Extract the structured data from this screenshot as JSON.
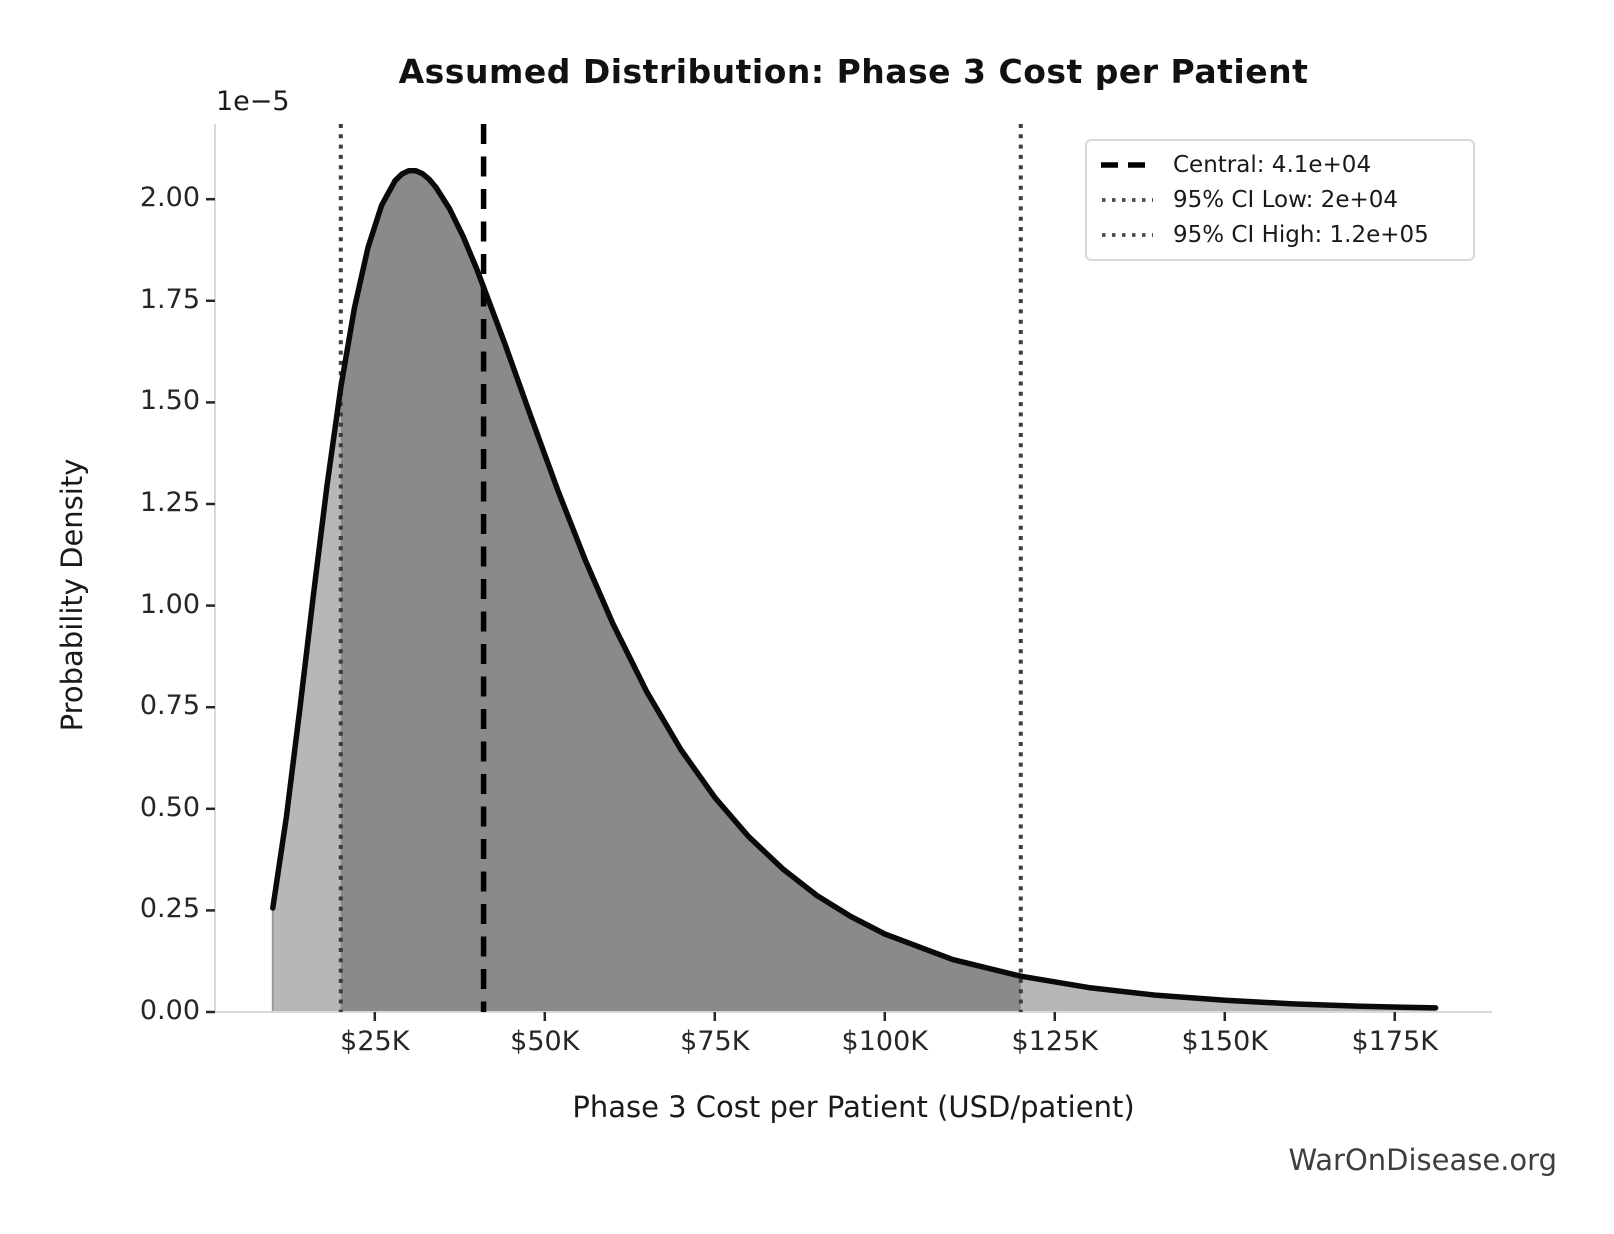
{
  "title": "Assumed Distribution: Phase 3 Cost per Patient",
  "watermark": "WarOnDisease.org",
  "chart_data": {
    "type": "area",
    "title": "Assumed Distribution: Phase 3 Cost per Patient",
    "xlabel": "Phase 3 Cost per Patient (USD/patient)",
    "ylabel": "Probability Density",
    "y_offset_label": "1e−5",
    "xlim": [
      1500,
      189300
    ],
    "ylim": [
      0,
      2.185
    ],
    "y_units": "1e-5",
    "grid": false,
    "legend_position": "upper right",
    "x_ticks": [
      {
        "value": 25000,
        "label": "$25K"
      },
      {
        "value": 50000,
        "label": "$50K"
      },
      {
        "value": 75000,
        "label": "$75K"
      },
      {
        "value": 100000,
        "label": "$100K"
      },
      {
        "value": 125000,
        "label": "$125K"
      },
      {
        "value": 150000,
        "label": "$150K"
      },
      {
        "value": 175000,
        "label": "$175K"
      }
    ],
    "y_ticks": [
      {
        "value": 0.0,
        "label": "0.00"
      },
      {
        "value": 0.25,
        "label": "0.25"
      },
      {
        "value": 0.5,
        "label": "0.50"
      },
      {
        "value": 0.75,
        "label": "0.75"
      },
      {
        "value": 1.0,
        "label": "1.00"
      },
      {
        "value": 1.25,
        "label": "1.25"
      },
      {
        "value": 1.5,
        "label": "1.50"
      },
      {
        "value": 1.75,
        "label": "1.75"
      },
      {
        "value": 2.0,
        "label": "2.00"
      }
    ],
    "curve": {
      "description": "lognormal probability density, density values in units of 1e-5",
      "x": [
        10000,
        12000,
        14000,
        16000,
        18000,
        20000,
        22000,
        24000,
        26000,
        28000,
        29000,
        30000,
        31000,
        32000,
        33000,
        34000,
        36000,
        38000,
        40000,
        44000,
        48000,
        52000,
        56000,
        60000,
        65000,
        70000,
        75000,
        80000,
        85000,
        90000,
        95000,
        100000,
        110000,
        120000,
        130000,
        140000,
        150000,
        160000,
        170000,
        181000
      ],
      "density": [
        0.256,
        0.48,
        0.749,
        1.03,
        1.299,
        1.537,
        1.732,
        1.881,
        1.985,
        2.046,
        2.062,
        2.07,
        2.07,
        2.063,
        2.049,
        2.029,
        1.976,
        1.908,
        1.828,
        1.65,
        1.463,
        1.28,
        1.11,
        0.956,
        0.788,
        0.646,
        0.528,
        0.431,
        0.352,
        0.287,
        0.235,
        0.192,
        0.129,
        0.088,
        0.06,
        0.041,
        0.029,
        0.02,
        0.014,
        0.01
      ]
    },
    "fills": {
      "full_range_x": [
        10000,
        181000
      ],
      "ci_range_x": [
        20000,
        120000
      ]
    },
    "vlines": [
      {
        "name": "central",
        "value": 41000,
        "style": "dashed",
        "label": "Central: 4.1e+04"
      },
      {
        "name": "ci_low",
        "value": 20000,
        "style": "dotted",
        "label": "95% CI Low: 2e+04"
      },
      {
        "name": "ci_high",
        "value": 120000,
        "style": "dotted",
        "label": "95% CI High: 1.2e+05"
      }
    ],
    "colors": {
      "curve": "#0a0a0a",
      "fill_light": "#b7b7b7",
      "fill_dark": "#8a8a8a",
      "dashed_line": "#000000",
      "dotted_line": "#3d3d3d",
      "spine": "#d9d9d9",
      "tick": "#262626"
    }
  }
}
